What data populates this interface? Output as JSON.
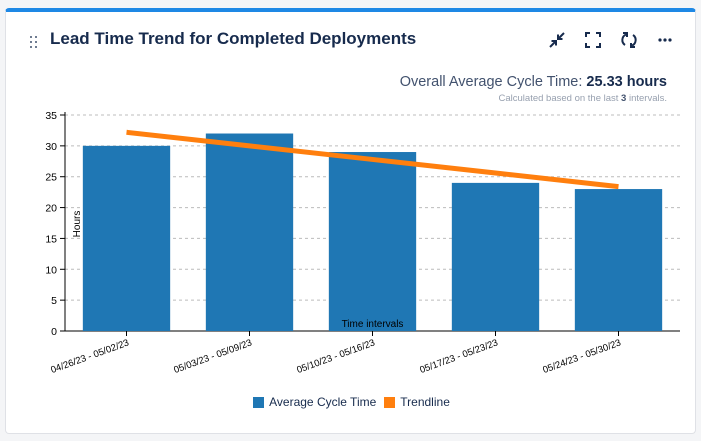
{
  "widget": {
    "title": "Lead Time Trend for Completed Deployments",
    "toolbar_icons": [
      "collapse-icon",
      "fullscreen-icon",
      "refresh-icon",
      "more-icon"
    ]
  },
  "summary": {
    "label": "Overall Average Cycle Time:",
    "value": "25.33 hours",
    "note_prefix": "Calculated based on the last",
    "note_count": "3",
    "note_suffix": "intervals."
  },
  "colors": {
    "accent": "#1e88e5",
    "bar": "#1f77b4",
    "trend": "#ff7f0e"
  },
  "chart_data": {
    "type": "bar",
    "xlabel": "Time intervals",
    "ylabel": "Hours",
    "ylim": [
      0,
      35
    ],
    "yticks": [
      0,
      5,
      10,
      15,
      20,
      25,
      30,
      35
    ],
    "grid": true,
    "legend_position": "bottom",
    "categories": [
      "04/26/23 - 05/02/23",
      "05/03/23 - 05/09/23",
      "05/10/23 - 05/16/23",
      "05/17/23 - 05/23/23",
      "05/24/23 - 05/30/23"
    ],
    "series": [
      {
        "name": "Average Cycle Time",
        "type": "bar",
        "values": [
          30,
          32,
          29,
          24,
          23
        ]
      },
      {
        "name": "Trendline",
        "type": "line",
        "values": [
          32.2,
          30.0,
          27.8,
          25.6,
          23.4
        ]
      }
    ]
  }
}
